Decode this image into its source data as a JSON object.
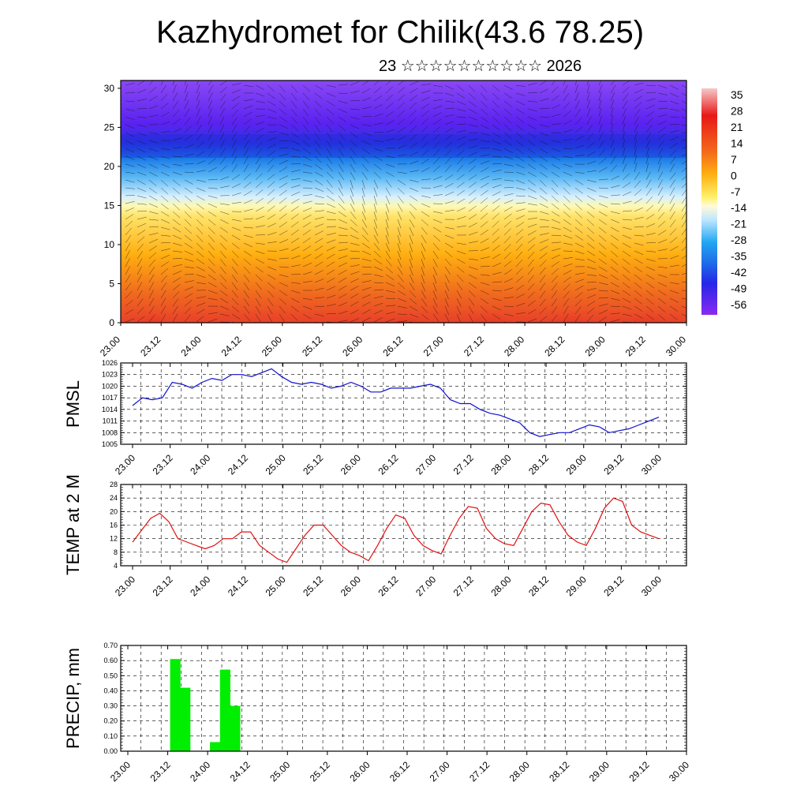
{
  "header": {
    "title": "Kazhydromet for Chilik(43.6 78.25)",
    "subtitle": "23 ☆☆☆☆☆☆☆☆☆☆ 2026"
  },
  "chart_data": [
    {
      "type": "heatmap",
      "name": "cross-section",
      "ylabel": "",
      "ylim": [
        0,
        31
      ],
      "yticks": [
        "0",
        "5",
        "10",
        "15",
        "20",
        "25",
        "30"
      ],
      "xticks": [
        "23.00",
        "23.12",
        "24.00",
        "24.12",
        "25.00",
        "25.12",
        "26.00",
        "26.12",
        "27.00",
        "27.12",
        "28.00",
        "28.12",
        "29.00",
        "29.12",
        "30.00"
      ],
      "colorbar_labels": [
        "35",
        "28",
        "21",
        "14",
        "7",
        "0",
        "-7",
        "-14",
        "-21",
        "-28",
        "-35",
        "-42",
        "-49",
        "-56"
      ],
      "overlay": "wind vectors",
      "colors": {
        "cold": "#7a1ff0",
        "cool": "#1e9ff0",
        "neutral": "#fff59a",
        "warm": "#ffb000",
        "hot": "#f03010"
      }
    },
    {
      "type": "line",
      "name": "pmsl",
      "ylabel": "PMSL",
      "ylim": [
        1005,
        1026
      ],
      "yticks": [
        "1005",
        "1008",
        "1011",
        "1014",
        "1017",
        "1020",
        "1023",
        "1026"
      ],
      "xticks": [
        "23.00",
        "23.12",
        "24.00",
        "24.12",
        "25.00",
        "25.12",
        "26.00",
        "26.12",
        "27.00",
        "27.12",
        "28.00",
        "28.12",
        "29.00",
        "29.12",
        "30.00"
      ],
      "color": "#1010d0",
      "values": [
        1015,
        1017,
        1016.5,
        1017,
        1021,
        1020.5,
        1019.5,
        1021,
        1022,
        1021.5,
        1023,
        1023,
        1022.5,
        1023.5,
        1024.5,
        1022.5,
        1021,
        1020.5,
        1021,
        1020.5,
        1019.5,
        1020,
        1021,
        1020,
        1018.5,
        1018.5,
        1019.5,
        1019.5,
        1019.5,
        1020,
        1020.5,
        1019.5,
        1016.5,
        1015.5,
        1015.5,
        1014,
        1013,
        1012.5,
        1011.5,
        1010.5,
        1008,
        1007,
        1007.5,
        1008,
        1008,
        1009,
        1010,
        1009.5,
        1008,
        1008.5,
        1009,
        1010,
        1011,
        1012
      ]
    },
    {
      "type": "line",
      "name": "temp",
      "ylabel": "TEMP at 2 M",
      "ylim": [
        4,
        28
      ],
      "yticks": [
        "4",
        "8",
        "12",
        "16",
        "20",
        "24",
        "28"
      ],
      "xticks": [
        "23.00",
        "23.12",
        "24.00",
        "24.12",
        "25.00",
        "25.12",
        "26.00",
        "26.12",
        "27.00",
        "27.12",
        "28.00",
        "28.12",
        "29.00",
        "29.12",
        "30.00"
      ],
      "color": "#e01010",
      "values": [
        11,
        14.5,
        18,
        19.5,
        17,
        12,
        11,
        10,
        9,
        10,
        12,
        12,
        14,
        14,
        10,
        8,
        6,
        5,
        9,
        13,
        16,
        16,
        13,
        10,
        8,
        7,
        5.5,
        10,
        15,
        19,
        18,
        13,
        10,
        8.5,
        7.5,
        13,
        18,
        21.5,
        21,
        15,
        12,
        10.5,
        10,
        15,
        20,
        22.5,
        22,
        17,
        13,
        11,
        10,
        15,
        21,
        24,
        23,
        16,
        14,
        13,
        12
      ]
    },
    {
      "type": "bar",
      "name": "precip",
      "ylabel": "PRECIP, mm",
      "ylim": [
        0,
        0.7
      ],
      "yticks": [
        "0.00",
        "0.10",
        "0.20",
        "0.30",
        "0.40",
        "0.50",
        "0.60",
        "0.70"
      ],
      "xticks": [
        "23.00",
        "23.12",
        "24.00",
        "24.12",
        "25.00",
        "25.12",
        "26.00",
        "26.12",
        "27.00",
        "27.12",
        "28.00",
        "28.12",
        "29.00",
        "29.12",
        "30.00"
      ],
      "color": "#00ee00",
      "values": [
        0,
        0,
        0,
        0,
        0.61,
        0.42,
        0,
        0,
        0.06,
        0.54,
        0.3,
        0,
        0,
        0,
        0,
        0,
        0,
        0,
        0,
        0,
        0,
        0,
        0,
        0,
        0,
        0,
        0,
        0,
        0,
        0,
        0,
        0,
        0,
        0,
        0,
        0,
        0,
        0,
        0,
        0,
        0,
        0,
        0,
        0,
        0,
        0,
        0,
        0,
        0,
        0,
        0,
        0,
        0,
        0,
        0,
        0
      ]
    }
  ]
}
